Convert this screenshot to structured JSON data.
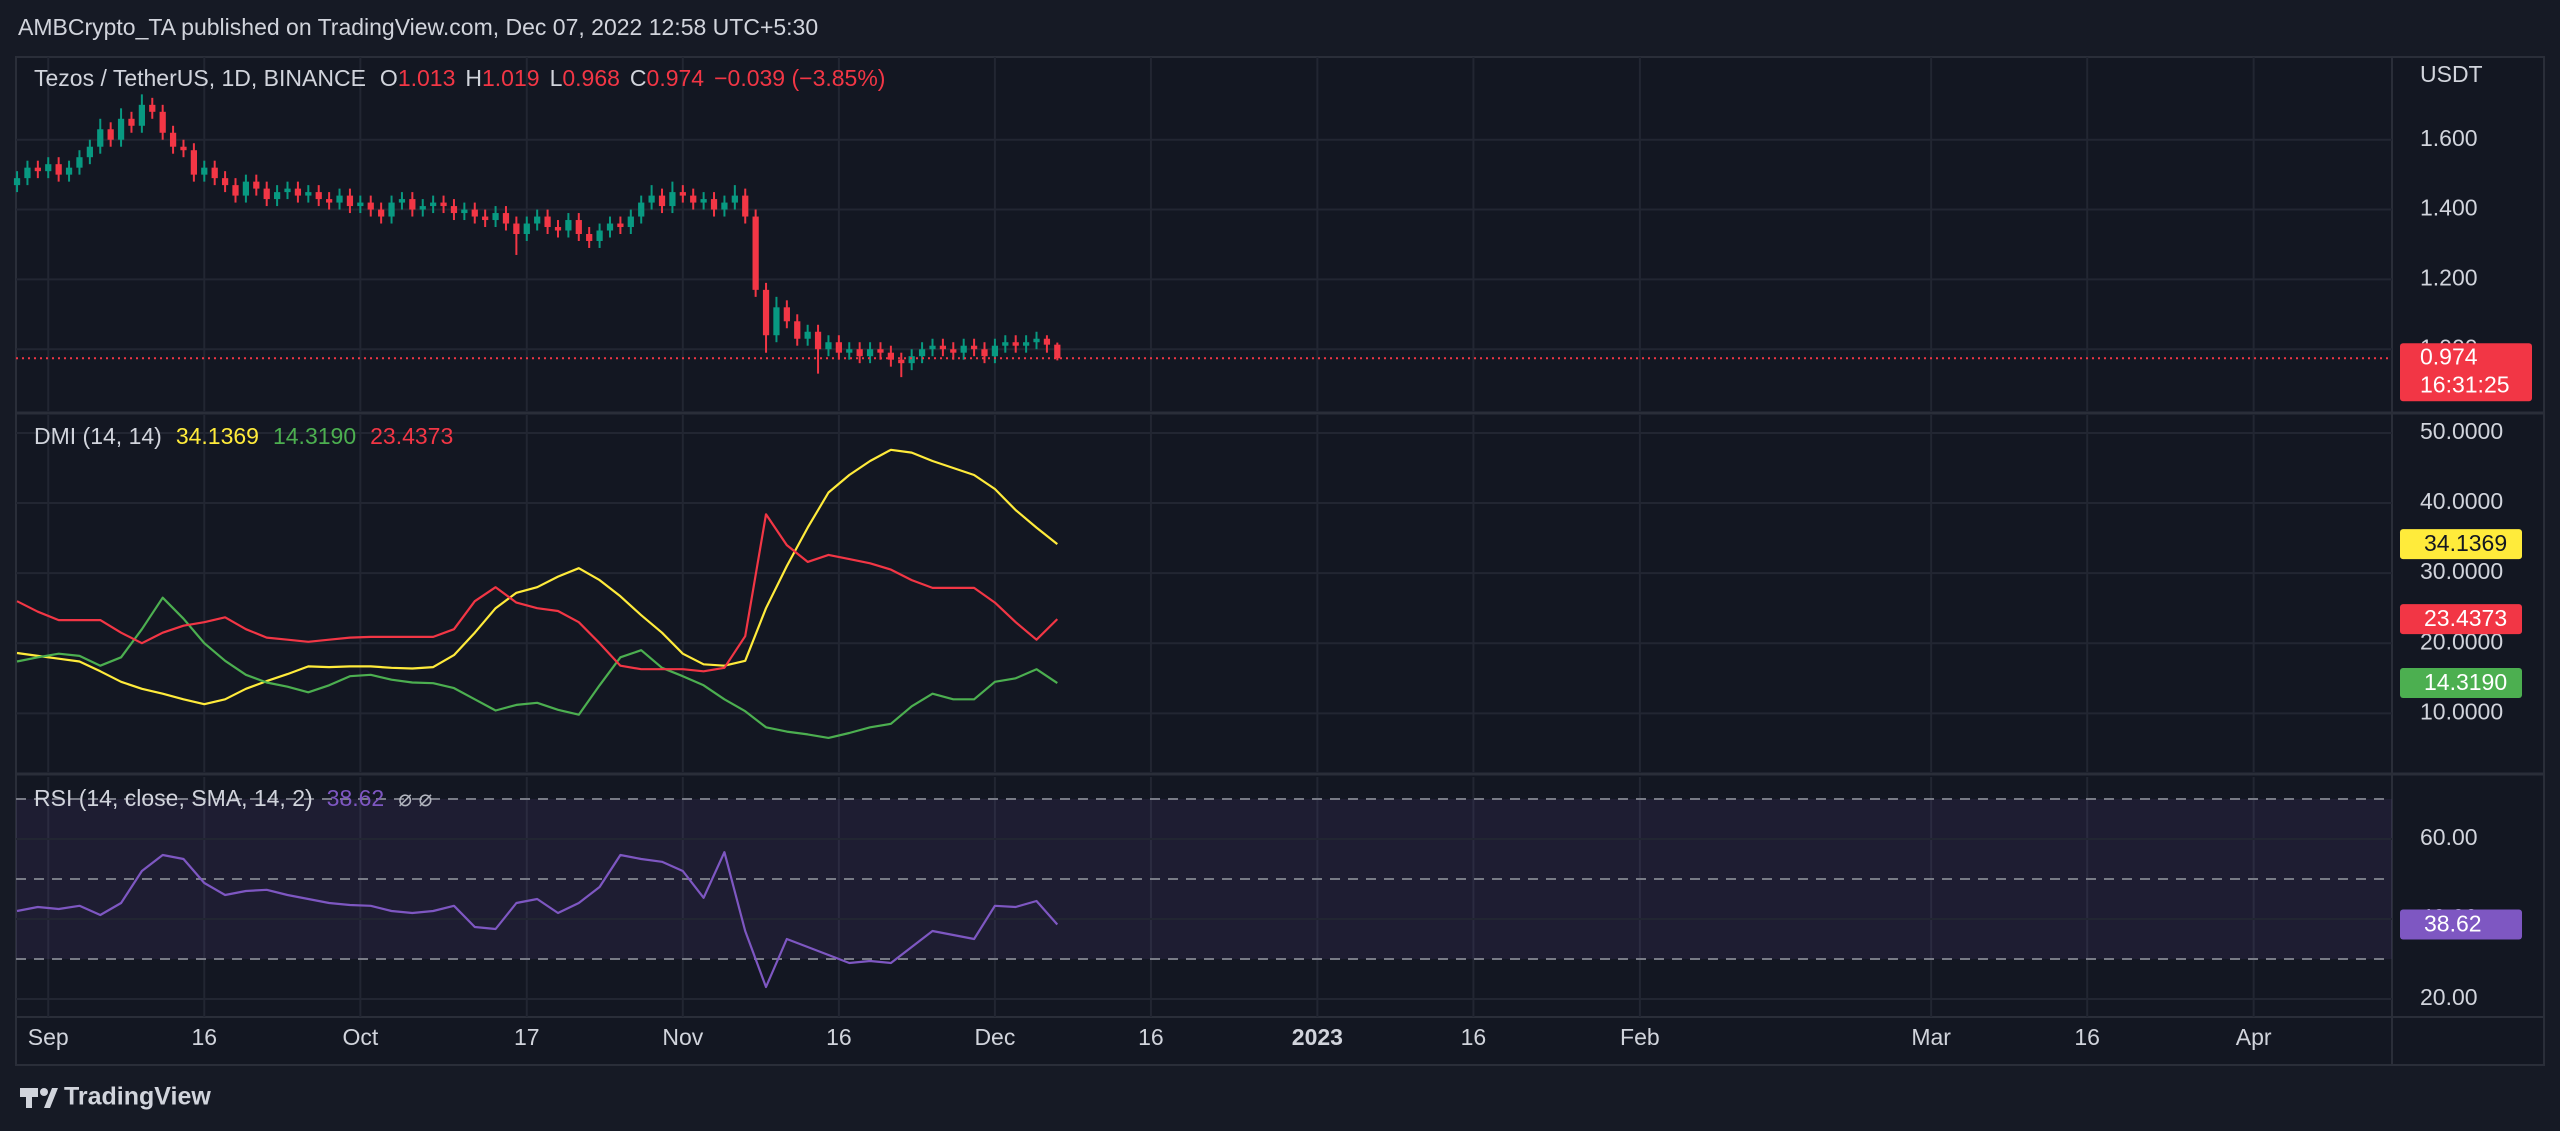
{
  "header": {
    "publisher": "AMBCrypto_TA published on TradingView.com, Dec 07, 2022 12:58 UTC+5:30",
    "logo": "TradingView"
  },
  "chart_data": [
    {
      "type": "candlestick",
      "title": "Tezos / TetherUS, 1D, BINANCE",
      "ohlc_keys": [
        "O",
        "H",
        "L",
        "C"
      ],
      "change": "−0.039 (−3.85%)",
      "axis_unit": "USDT",
      "countdown": "16:31:25",
      "up_color": "#089981",
      "down_color": "#f23645",
      "grid": true,
      "xlim": [
        -3.1,
        225.3
      ],
      "xticks": [
        {
          "value": 0,
          "label": "Sep"
        },
        {
          "value": 15,
          "label": "16"
        },
        {
          "value": 30,
          "label": "Oct"
        },
        {
          "value": 46,
          "label": "17"
        },
        {
          "value": 61,
          "label": "Nov"
        },
        {
          "value": 76,
          "label": "16"
        },
        {
          "value": 91,
          "label": "Dec"
        },
        {
          "value": 106,
          "label": "16"
        },
        {
          "value": 122,
          "label": "2023"
        },
        {
          "value": 137,
          "label": "16"
        },
        {
          "value": 153,
          "label": "Feb"
        },
        {
          "value": 181,
          "label": "Mar"
        },
        {
          "value": 196,
          "label": "16"
        },
        {
          "value": 212,
          "label": "Apr"
        }
      ],
      "ylim": [
        0.823,
        1.837
      ],
      "yticks": [
        {
          "value": 1.0,
          "label": "1.000"
        },
        {
          "value": 1.2,
          "label": "1.200"
        },
        {
          "value": 1.4,
          "label": "1.400"
        },
        {
          "value": 1.6,
          "label": "1.600"
        }
      ],
      "x": [
        -3,
        -2,
        -1,
        0,
        1,
        2,
        3,
        4,
        5,
        6,
        7,
        8,
        9,
        10,
        11,
        12,
        13,
        14,
        15,
        16,
        17,
        18,
        19,
        20,
        21,
        22,
        23,
        24,
        25,
        26,
        27,
        28,
        29,
        30,
        31,
        32,
        33,
        34,
        35,
        36,
        37,
        38,
        39,
        40,
        41,
        42,
        43,
        44,
        45,
        46,
        47,
        48,
        49,
        50,
        51,
        52,
        53,
        54,
        55,
        56,
        57,
        58,
        59,
        60,
        61,
        62,
        63,
        64,
        65,
        66,
        67,
        68,
        69,
        70,
        71,
        72,
        73,
        74,
        75,
        76,
        77,
        78,
        79,
        80,
        81,
        82,
        83,
        84,
        85,
        86,
        87,
        88,
        89,
        90,
        91,
        92,
        93,
        94,
        95,
        96,
        97
      ],
      "open": [
        1.47,
        1.49,
        1.52,
        1.51,
        1.53,
        1.5,
        1.52,
        1.55,
        1.58,
        1.63,
        1.6,
        1.66,
        1.64,
        1.7,
        1.68,
        1.62,
        1.58,
        1.57,
        1.5,
        1.52,
        1.49,
        1.47,
        1.44,
        1.48,
        1.46,
        1.43,
        1.45,
        1.46,
        1.44,
        1.45,
        1.43,
        1.42,
        1.44,
        1.41,
        1.42,
        1.4,
        1.38,
        1.42,
        1.43,
        1.4,
        1.41,
        1.42,
        1.41,
        1.39,
        1.4,
        1.38,
        1.37,
        1.39,
        1.36,
        1.33,
        1.36,
        1.38,
        1.35,
        1.34,
        1.37,
        1.33,
        1.31,
        1.34,
        1.36,
        1.35,
        1.38,
        1.42,
        1.44,
        1.41,
        1.45,
        1.44,
        1.42,
        1.43,
        1.4,
        1.42,
        1.44,
        1.38,
        1.17,
        1.04,
        1.12,
        1.08,
        1.03,
        1.05,
        1.0,
        1.02,
        0.99,
        1.0,
        0.98,
        1.0,
        0.99,
        0.97,
        0.96,
        0.98,
        1.0,
        1.01,
        1.0,
        0.99,
        1.01,
        1.0,
        0.98,
        1.01,
        1.02,
        1.01,
        1.02,
        1.03,
        1.013
      ],
      "high": [
        1.51,
        1.54,
        1.54,
        1.55,
        1.55,
        1.54,
        1.57,
        1.6,
        1.66,
        1.65,
        1.69,
        1.68,
        1.73,
        1.72,
        1.7,
        1.64,
        1.6,
        1.59,
        1.54,
        1.54,
        1.51,
        1.49,
        1.5,
        1.5,
        1.48,
        1.47,
        1.48,
        1.48,
        1.47,
        1.47,
        1.45,
        1.46,
        1.46,
        1.44,
        1.44,
        1.42,
        1.44,
        1.45,
        1.45,
        1.43,
        1.44,
        1.44,
        1.43,
        1.42,
        1.42,
        1.4,
        1.41,
        1.41,
        1.38,
        1.38,
        1.4,
        1.4,
        1.37,
        1.39,
        1.39,
        1.35,
        1.36,
        1.38,
        1.38,
        1.4,
        1.44,
        1.47,
        1.46,
        1.48,
        1.47,
        1.46,
        1.45,
        1.45,
        1.44,
        1.47,
        1.46,
        1.4,
        1.19,
        1.15,
        1.14,
        1.1,
        1.07,
        1.07,
        1.04,
        1.04,
        1.02,
        1.02,
        1.02,
        1.02,
        1.01,
        0.99,
        1.0,
        1.02,
        1.03,
        1.03,
        1.02,
        1.03,
        1.03,
        1.02,
        1.03,
        1.04,
        1.04,
        1.04,
        1.05,
        1.04,
        1.019
      ],
      "low": [
        1.45,
        1.47,
        1.49,
        1.49,
        1.48,
        1.48,
        1.5,
        1.53,
        1.56,
        1.58,
        1.58,
        1.62,
        1.62,
        1.66,
        1.6,
        1.56,
        1.55,
        1.48,
        1.48,
        1.47,
        1.45,
        1.42,
        1.42,
        1.44,
        1.41,
        1.41,
        1.43,
        1.42,
        1.42,
        1.41,
        1.4,
        1.4,
        1.39,
        1.39,
        1.38,
        1.36,
        1.36,
        1.4,
        1.38,
        1.38,
        1.39,
        1.39,
        1.37,
        1.37,
        1.36,
        1.35,
        1.35,
        1.34,
        1.27,
        1.31,
        1.34,
        1.33,
        1.32,
        1.32,
        1.31,
        1.29,
        1.29,
        1.32,
        1.33,
        1.33,
        1.36,
        1.4,
        1.39,
        1.39,
        1.42,
        1.4,
        1.4,
        1.38,
        1.38,
        1.4,
        1.36,
        1.15,
        0.99,
        1.02,
        1.06,
        1.01,
        1.01,
        0.93,
        0.98,
        0.97,
        0.97,
        0.96,
        0.96,
        0.97,
        0.95,
        0.92,
        0.94,
        0.96,
        0.98,
        0.98,
        0.97,
        0.97,
        0.98,
        0.96,
        0.96,
        0.99,
        0.99,
        0.99,
        1.0,
        0.99,
        0.968
      ],
      "close": [
        1.49,
        1.52,
        1.51,
        1.53,
        1.5,
        1.52,
        1.55,
        1.58,
        1.63,
        1.6,
        1.66,
        1.64,
        1.7,
        1.68,
        1.62,
        1.58,
        1.57,
        1.5,
        1.52,
        1.49,
        1.47,
        1.44,
        1.48,
        1.46,
        1.43,
        1.45,
        1.46,
        1.44,
        1.45,
        1.43,
        1.42,
        1.44,
        1.41,
        1.42,
        1.4,
        1.38,
        1.42,
        1.43,
        1.4,
        1.41,
        1.42,
        1.41,
        1.39,
        1.4,
        1.38,
        1.37,
        1.39,
        1.36,
        1.33,
        1.36,
        1.38,
        1.35,
        1.34,
        1.37,
        1.33,
        1.31,
        1.34,
        1.36,
        1.35,
        1.38,
        1.42,
        1.44,
        1.41,
        1.45,
        1.44,
        1.42,
        1.43,
        1.4,
        1.42,
        1.44,
        1.38,
        1.17,
        1.04,
        1.12,
        1.08,
        1.03,
        1.05,
        1.0,
        1.02,
        0.99,
        1.0,
        0.98,
        1.0,
        0.99,
        0.97,
        0.96,
        0.98,
        1.0,
        1.01,
        1.0,
        0.99,
        1.01,
        1.0,
        0.98,
        1.01,
        1.02,
        1.01,
        1.02,
        1.03,
        1.013,
        0.974
      ]
    },
    {
      "type": "line",
      "title": "DMI (14, 14)",
      "grid": true,
      "ylim": [
        1.63,
        52.56
      ],
      "yticks": [
        {
          "value": 10,
          "label": "10.0000"
        },
        {
          "value": 20,
          "label": "20.0000"
        },
        {
          "value": 30,
          "label": "30.0000"
        },
        {
          "value": 40,
          "label": "40.0000"
        },
        {
          "value": 50,
          "label": "50.0000"
        }
      ],
      "x": [
        -3,
        -1,
        1,
        3,
        5,
        7,
        9,
        11,
        13,
        15,
        17,
        19,
        21,
        23,
        25,
        27,
        29,
        31,
        33,
        35,
        37,
        39,
        41,
        43,
        45,
        47,
        49,
        51,
        53,
        55,
        57,
        59,
        61,
        63,
        65,
        67,
        69,
        71,
        73,
        75,
        77,
        79,
        81,
        83,
        85,
        87,
        89,
        91,
        93,
        95,
        97
      ],
      "series": [
        {
          "color": "#ffeb3b",
          "last_label": "34.1369",
          "values": [
            18.6,
            18.2,
            17.8,
            17.4,
            16,
            14.5,
            13.5,
            12.8,
            12,
            11.3,
            12,
            13.5,
            14.6,
            15.6,
            16.7,
            16.6,
            16.7,
            16.7,
            16.5,
            16.4,
            16.6,
            18.3,
            21.5,
            25,
            27.2,
            28,
            29.5,
            30.7,
            29,
            26.7,
            24,
            21.5,
            18.5,
            17,
            16.8,
            17.5,
            25,
            31,
            36.5,
            41.5,
            44,
            46,
            47.6,
            47.2,
            46,
            45,
            44,
            42,
            39,
            36.5,
            34.1369
          ]
        },
        {
          "color": "#4caf50",
          "last_label": "14.3190",
          "values": [
            17.4,
            18,
            18.5,
            18.2,
            16.8,
            18,
            22,
            26.5,
            23.5,
            20,
            17.5,
            15.5,
            14.4,
            13.8,
            13,
            14,
            15.3,
            15.5,
            14.8,
            14.4,
            14.3,
            13.6,
            12,
            10.4,
            11.2,
            11.5,
            10.5,
            9.8,
            14,
            18,
            19,
            16.5,
            15.3,
            14,
            12,
            10.3,
            8,
            7.4,
            7,
            6.5,
            7.2,
            8,
            8.5,
            11,
            12.8,
            12,
            12,
            14.5,
            15,
            16.3,
            14.319
          ]
        },
        {
          "color": "#f23645",
          "last_label": "23.4373",
          "values": [
            26,
            24.5,
            23.3,
            23.3,
            23.3,
            21.5,
            20,
            21.5,
            22.5,
            23,
            23.7,
            22,
            20.8,
            20.5,
            20.2,
            20.5,
            20.8,
            20.9,
            20.9,
            20.9,
            20.9,
            22,
            26,
            28,
            25.8,
            25,
            24.6,
            23,
            20,
            16.8,
            16.3,
            16.3,
            16.3,
            16,
            16.5,
            21,
            38.4,
            34,
            31.6,
            32.6,
            32,
            31.4,
            30.5,
            29,
            27.9,
            27.9,
            27.9,
            25.8,
            23,
            20.5,
            23.4373
          ]
        }
      ]
    },
    {
      "type": "line",
      "title": "RSI (14, close, SMA, 14, 2)",
      "icons": "⌀ ⌀",
      "grid": true,
      "ylim": [
        15.5,
        75.5
      ],
      "yticks": [
        {
          "value": 20,
          "label": "20.00"
        },
        {
          "value": 40,
          "label": "40.00"
        },
        {
          "value": 60,
          "label": "60.00"
        }
      ],
      "bands": [
        70,
        50,
        30
      ],
      "band_fill": "#7e57c2",
      "x": [
        -3,
        -1,
        1,
        3,
        5,
        7,
        9,
        11,
        13,
        15,
        17,
        19,
        21,
        23,
        25,
        27,
        29,
        31,
        33,
        35,
        37,
        39,
        41,
        43,
        45,
        47,
        49,
        51,
        53,
        55,
        57,
        59,
        61,
        63,
        65,
        67,
        69,
        71,
        73,
        75,
        77,
        79,
        81,
        83,
        85,
        87,
        89,
        91,
        93,
        95,
        97
      ],
      "series": [
        {
          "color": "#7e57c2",
          "last_label": "38.62",
          "values": [
            42,
            43,
            42.5,
            43.3,
            41,
            44,
            52,
            56,
            55,
            49,
            46,
            47,
            47.3,
            46,
            45,
            44,
            43.5,
            43.3,
            42,
            41.5,
            42,
            43.3,
            38,
            37.5,
            44,
            45,
            41.5,
            44,
            48,
            56,
            55,
            54.3,
            52,
            45.3,
            56.7,
            37,
            23,
            35,
            33,
            31,
            29,
            29.5,
            29,
            33,
            37,
            36,
            35,
            43.3,
            43,
            44.5,
            38.62
          ]
        }
      ]
    }
  ]
}
